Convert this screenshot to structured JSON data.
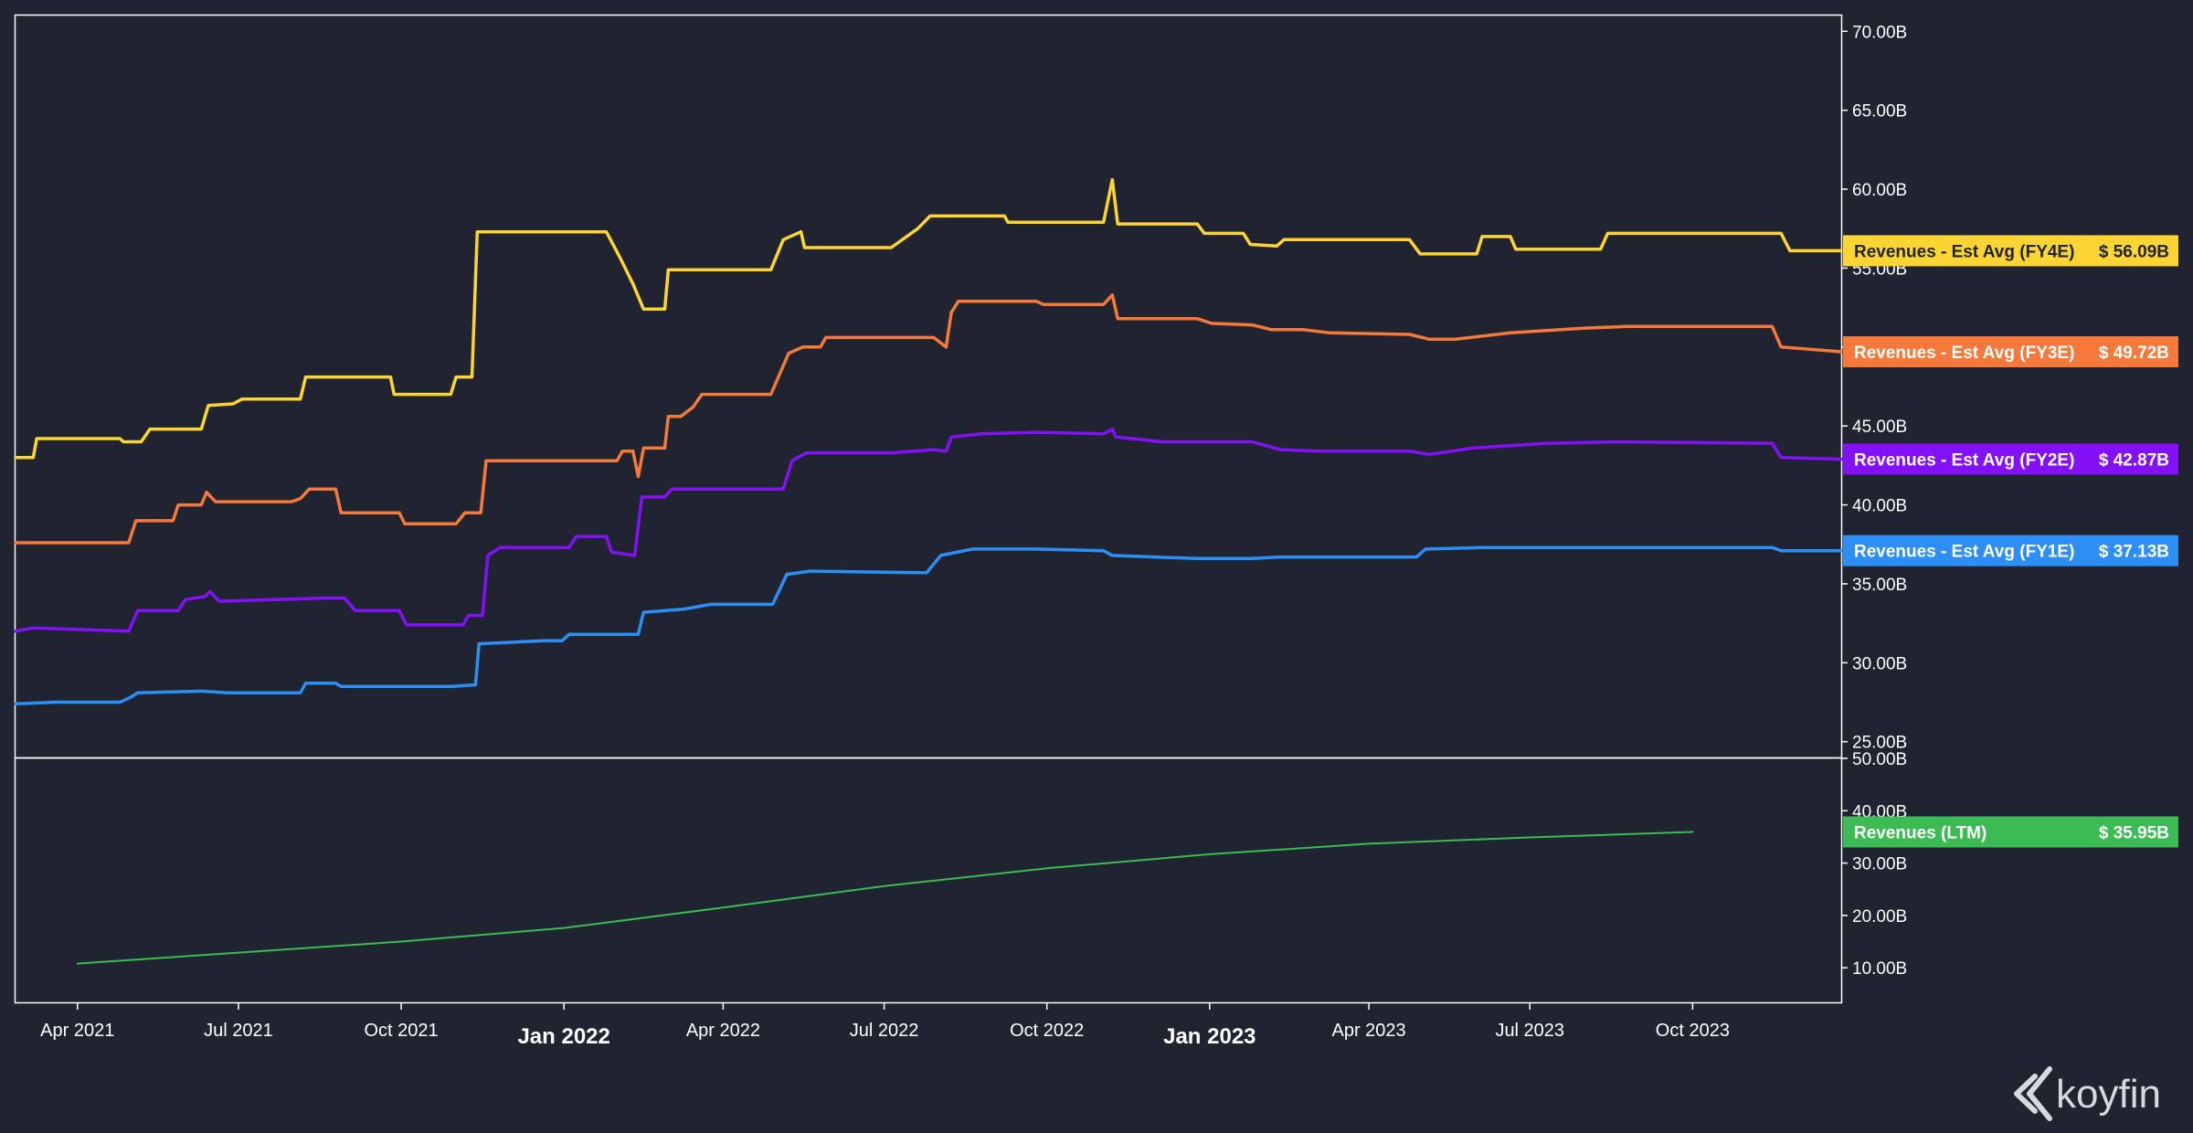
{
  "chart_data": [
    {
      "type": "line",
      "panel": "top",
      "yticks": [
        "70.00B",
        "65.00B",
        "60.00B",
        "55.00B",
        "50.00B",
        "45.00B",
        "40.00B",
        "35.00B",
        "30.00B",
        "25.00B"
      ],
      "ytick_values": [
        70,
        65,
        60,
        55,
        50,
        45,
        40,
        35,
        30,
        25
      ],
      "ylim": [
        24,
        71
      ],
      "xlim": [
        "2021-02-25",
        "2023-12-24"
      ],
      "series": [
        {
          "name": "Revenues - Est Avg (FY4E)",
          "color": "#fcd535",
          "last_value": "$ 56.09B",
          "points": [
            [
              "2021-02-25",
              43.0
            ],
            [
              "2021-03-07",
              43.0
            ],
            [
              "2021-03-09",
              44.2
            ],
            [
              "2021-04-25",
              44.2
            ],
            [
              "2021-04-27",
              44.0
            ],
            [
              "2021-05-07",
              44.0
            ],
            [
              "2021-05-12",
              44.8
            ],
            [
              "2021-06-10",
              44.8
            ],
            [
              "2021-06-14",
              46.3
            ],
            [
              "2021-06-28",
              46.4
            ],
            [
              "2021-07-03",
              46.7
            ],
            [
              "2021-08-05",
              46.7
            ],
            [
              "2021-08-08",
              48.1
            ],
            [
              "2021-09-25",
              48.1
            ],
            [
              "2021-09-27",
              47.0
            ],
            [
              "2021-10-29",
              47.0
            ],
            [
              "2021-11-01",
              48.1
            ],
            [
              "2021-11-10",
              48.1
            ],
            [
              "2021-11-13",
              57.3
            ],
            [
              "2022-01-25",
              57.3
            ],
            [
              "2022-02-02",
              55.6
            ],
            [
              "2022-02-09",
              54.0
            ],
            [
              "2022-02-15",
              52.4
            ],
            [
              "2022-02-27",
              52.4
            ],
            [
              "2022-03-01",
              54.9
            ],
            [
              "2022-04-28",
              54.9
            ],
            [
              "2022-05-05",
              56.8
            ],
            [
              "2022-05-15",
              57.3
            ],
            [
              "2022-05-17",
              56.3
            ],
            [
              "2022-07-05",
              56.3
            ],
            [
              "2022-07-20",
              57.5
            ],
            [
              "2022-07-27",
              58.3
            ],
            [
              "2022-09-07",
              58.3
            ],
            [
              "2022-09-09",
              57.9
            ],
            [
              "2022-11-02",
              57.9
            ],
            [
              "2022-11-07",
              60.6
            ],
            [
              "2022-11-10",
              57.8
            ],
            [
              "2022-12-25",
              57.8
            ],
            [
              "2022-12-29",
              57.2
            ],
            [
              "2023-01-20",
              57.2
            ],
            [
              "2023-01-24",
              56.5
            ],
            [
              "2023-02-08",
              56.4
            ],
            [
              "2023-02-12",
              56.8
            ],
            [
              "2023-04-24",
              56.8
            ],
            [
              "2023-04-30",
              55.9
            ],
            [
              "2023-06-01",
              55.9
            ],
            [
              "2023-06-04",
              57.0
            ],
            [
              "2023-06-20",
              57.0
            ],
            [
              "2023-06-23",
              56.2
            ],
            [
              "2023-08-10",
              56.2
            ],
            [
              "2023-08-14",
              57.2
            ],
            [
              "2023-11-20",
              57.2
            ],
            [
              "2023-11-25",
              56.1
            ],
            [
              "2023-12-24",
              56.1
            ]
          ]
        },
        {
          "name": "Revenues - Est Avg (FY3E)",
          "color": "#f5793b",
          "last_value": "$ 49.72B",
          "points": [
            [
              "2021-02-25",
              37.6
            ],
            [
              "2021-04-30",
              37.6
            ],
            [
              "2021-05-04",
              39.0
            ],
            [
              "2021-05-25",
              39.0
            ],
            [
              "2021-05-28",
              40.0
            ],
            [
              "2021-06-10",
              40.0
            ],
            [
              "2021-06-13",
              40.8
            ],
            [
              "2021-06-18",
              40.2
            ],
            [
              "2021-07-31",
              40.2
            ],
            [
              "2021-08-05",
              40.4
            ],
            [
              "2021-08-10",
              41.0
            ],
            [
              "2021-08-25",
              41.0
            ],
            [
              "2021-08-28",
              39.5
            ],
            [
              "2021-09-30",
              39.5
            ],
            [
              "2021-10-03",
              38.8
            ],
            [
              "2021-11-01",
              38.8
            ],
            [
              "2021-11-06",
              39.5
            ],
            [
              "2021-11-15",
              39.5
            ],
            [
              "2021-11-18",
              42.8
            ],
            [
              "2022-01-31",
              42.8
            ],
            [
              "2022-02-03",
              43.4
            ],
            [
              "2022-02-09",
              43.4
            ],
            [
              "2022-02-12",
              41.8
            ],
            [
              "2022-02-15",
              43.6
            ],
            [
              "2022-02-27",
              43.6
            ],
            [
              "2022-03-01",
              45.6
            ],
            [
              "2022-03-08",
              45.6
            ],
            [
              "2022-03-15",
              46.2
            ],
            [
              "2022-03-20",
              47.0
            ],
            [
              "2022-04-28",
              47.0
            ],
            [
              "2022-05-08",
              49.6
            ],
            [
              "2022-05-16",
              50.0
            ],
            [
              "2022-05-26",
              50.0
            ],
            [
              "2022-05-29",
              50.6
            ],
            [
              "2022-07-29",
              50.6
            ],
            [
              "2022-08-05",
              50.0
            ],
            [
              "2022-08-08",
              52.2
            ],
            [
              "2022-08-12",
              52.9
            ],
            [
              "2022-09-25",
              52.9
            ],
            [
              "2022-09-29",
              52.7
            ],
            [
              "2022-11-02",
              52.7
            ],
            [
              "2022-11-07",
              53.3
            ],
            [
              "2022-11-10",
              51.8
            ],
            [
              "2022-12-25",
              51.8
            ],
            [
              "2023-01-02",
              51.5
            ],
            [
              "2023-01-25",
              51.4
            ],
            [
              "2023-02-05",
              51.1
            ],
            [
              "2023-02-23",
              51.1
            ],
            [
              "2023-03-10",
              50.9
            ],
            [
              "2023-04-24",
              50.8
            ],
            [
              "2023-05-05",
              50.5
            ],
            [
              "2023-05-20",
              50.5
            ],
            [
              "2023-06-20",
              50.9
            ],
            [
              "2023-08-01",
              51.2
            ],
            [
              "2023-08-25",
              51.3
            ],
            [
              "2023-11-15",
              51.3
            ],
            [
              "2023-11-20",
              50.0
            ],
            [
              "2023-12-24",
              49.7
            ]
          ]
        },
        {
          "name": "Revenues - Est Avg (FY2E)",
          "color": "#8411f5",
          "last_value": "$ 42.87B",
          "points": [
            [
              "2021-02-25",
              32.0
            ],
            [
              "2021-03-07",
              32.2
            ],
            [
              "2021-04-30",
              32.0
            ],
            [
              "2021-05-05",
              33.3
            ],
            [
              "2021-05-28",
              33.3
            ],
            [
              "2021-06-01",
              34.0
            ],
            [
              "2021-06-12",
              34.2
            ],
            [
              "2021-06-15",
              34.5
            ],
            [
              "2021-06-20",
              33.9
            ],
            [
              "2021-08-20",
              34.1
            ],
            [
              "2021-08-30",
              34.1
            ],
            [
              "2021-09-05",
              33.3
            ],
            [
              "2021-09-30",
              33.3
            ],
            [
              "2021-10-04",
              32.4
            ],
            [
              "2021-11-05",
              32.4
            ],
            [
              "2021-11-08",
              33.0
            ],
            [
              "2021-11-16",
              33.0
            ],
            [
              "2021-11-19",
              36.8
            ],
            [
              "2021-11-26",
              37.3
            ],
            [
              "2022-01-04",
              37.3
            ],
            [
              "2022-01-08",
              38.0
            ],
            [
              "2022-01-25",
              38.0
            ],
            [
              "2022-01-28",
              37.0
            ],
            [
              "2022-02-10",
              36.8
            ],
            [
              "2022-02-14",
              40.5
            ],
            [
              "2022-02-27",
              40.5
            ],
            [
              "2022-03-03",
              41.0
            ],
            [
              "2022-05-05",
              41.0
            ],
            [
              "2022-05-10",
              42.8
            ],
            [
              "2022-05-18",
              43.3
            ],
            [
              "2022-07-05",
              43.3
            ],
            [
              "2022-07-29",
              43.5
            ],
            [
              "2022-08-05",
              43.4
            ],
            [
              "2022-08-08",
              44.3
            ],
            [
              "2022-08-25",
              44.5
            ],
            [
              "2022-09-25",
              44.6
            ],
            [
              "2022-11-02",
              44.5
            ],
            [
              "2022-11-07",
              44.8
            ],
            [
              "2022-11-09",
              44.3
            ],
            [
              "2022-12-05",
              44.0
            ],
            [
              "2023-01-25",
              44.0
            ],
            [
              "2023-02-10",
              43.5
            ],
            [
              "2023-03-05",
              43.4
            ],
            [
              "2023-04-24",
              43.4
            ],
            [
              "2023-05-05",
              43.2
            ],
            [
              "2023-05-30",
              43.6
            ],
            [
              "2023-07-10",
              43.9
            ],
            [
              "2023-08-20",
              44.0
            ],
            [
              "2023-11-15",
              43.9
            ],
            [
              "2023-11-20",
              43.0
            ],
            [
              "2023-12-24",
              42.9
            ]
          ]
        },
        {
          "name": "Revenues - Est Avg (FY1E)",
          "color": "#2d8ff5",
          "last_value": "$ 37.13B",
          "points": [
            [
              "2021-02-25",
              27.4
            ],
            [
              "2021-03-20",
              27.5
            ],
            [
              "2021-04-25",
              27.5
            ],
            [
              "2021-05-01",
              27.8
            ],
            [
              "2021-05-05",
              28.1
            ],
            [
              "2021-06-10",
              28.2
            ],
            [
              "2021-06-25",
              28.1
            ],
            [
              "2021-08-05",
              28.1
            ],
            [
              "2021-08-08",
              28.7
            ],
            [
              "2021-08-25",
              28.7
            ],
            [
              "2021-08-28",
              28.5
            ],
            [
              "2021-10-30",
              28.5
            ],
            [
              "2021-11-12",
              28.6
            ],
            [
              "2021-11-14",
              31.2
            ],
            [
              "2021-12-20",
              31.4
            ],
            [
              "2021-12-31",
              31.4
            ],
            [
              "2022-01-04",
              31.8
            ],
            [
              "2022-02-12",
              31.8
            ],
            [
              "2022-02-15",
              33.2
            ],
            [
              "2022-03-10",
              33.4
            ],
            [
              "2022-03-25",
              33.7
            ],
            [
              "2022-04-29",
              33.7
            ],
            [
              "2022-05-07",
              35.6
            ],
            [
              "2022-05-20",
              35.8
            ],
            [
              "2022-07-25",
              35.7
            ],
            [
              "2022-08-02",
              36.8
            ],
            [
              "2022-08-20",
              37.2
            ],
            [
              "2022-09-25",
              37.2
            ],
            [
              "2022-11-02",
              37.1
            ],
            [
              "2022-11-07",
              36.8
            ],
            [
              "2022-12-25",
              36.6
            ],
            [
              "2023-01-25",
              36.6
            ],
            [
              "2023-02-10",
              36.7
            ],
            [
              "2023-04-28",
              36.7
            ],
            [
              "2023-05-03",
              37.2
            ],
            [
              "2023-06-05",
              37.3
            ],
            [
              "2023-11-15",
              37.3
            ],
            [
              "2023-11-20",
              37.1
            ],
            [
              "2023-12-24",
              37.1
            ]
          ]
        }
      ]
    },
    {
      "type": "line",
      "panel": "bottom",
      "yticks": [
        "50.00B",
        "40.00B",
        "30.00B",
        "20.00B",
        "10.00B"
      ],
      "ytick_values": [
        50,
        40,
        30,
        20,
        10
      ],
      "ylim": [
        3.4,
        50
      ],
      "xlim": [
        "2021-02-25",
        "2023-12-24"
      ],
      "xticks": [
        {
          "label": "Apr 2021",
          "date": "2021-04-01",
          "major": false
        },
        {
          "label": "Jul 2021",
          "date": "2021-07-01",
          "major": false
        },
        {
          "label": "Oct 2021",
          "date": "2021-10-01",
          "major": false
        },
        {
          "label": "Jan 2022",
          "date": "2022-01-01",
          "major": true
        },
        {
          "label": "Apr 2022",
          "date": "2022-04-01",
          "major": false
        },
        {
          "label": "Jul 2022",
          "date": "2022-07-01",
          "major": false
        },
        {
          "label": "Oct 2022",
          "date": "2022-10-01",
          "major": false
        },
        {
          "label": "Jan 2023",
          "date": "2023-01-01",
          "major": true
        },
        {
          "label": "Apr 2023",
          "date": "2023-04-01",
          "major": false
        },
        {
          "label": "Jul 2023",
          "date": "2023-07-01",
          "major": false
        },
        {
          "label": "Oct 2023",
          "date": "2023-10-01",
          "major": false
        }
      ],
      "series": [
        {
          "name": "Revenues (LTM)",
          "color": "#3cba54",
          "last_value": "$ 35.95B",
          "points": [
            [
              "2021-04-01",
              10.8
            ],
            [
              "2021-07-01",
              12.9
            ],
            [
              "2021-10-01",
              15.0
            ],
            [
              "2022-01-01",
              17.6
            ],
            [
              "2022-04-01",
              21.5
            ],
            [
              "2022-07-01",
              25.6
            ],
            [
              "2022-10-01",
              29.0
            ],
            [
              "2023-01-01",
              31.7
            ],
            [
              "2023-04-01",
              33.7
            ],
            [
              "2023-07-01",
              34.9
            ],
            [
              "2023-10-01",
              35.95
            ]
          ]
        }
      ]
    }
  ],
  "brand": {
    "name": "koyfin",
    "logo_icon": "koyfin-chevron-icon"
  },
  "colors": {
    "background": "#1f2430",
    "border": "#ffffff"
  }
}
